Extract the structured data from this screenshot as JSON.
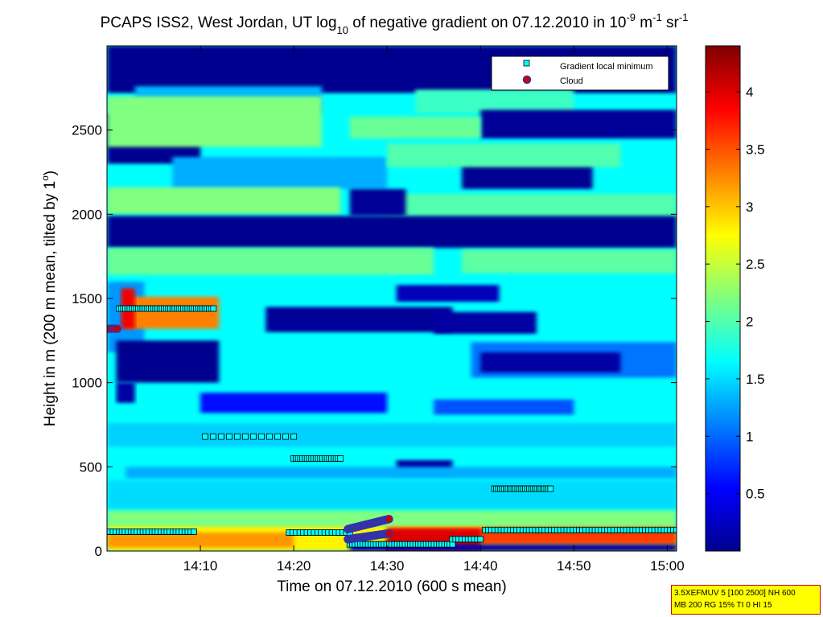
{
  "chart_data": {
    "type": "heatmap",
    "title": {
      "part1": "PCAPS ISS2, West Jordan, UT log",
      "sub10": "10",
      "part2": " of negative gradient on 07.12.2010 in 10",
      "sup_m9": "-9",
      "part3": " m",
      "sup_m1a": "-1",
      "part4": " sr",
      "sup_m1b": "-1"
    },
    "xlabel": "Time on 07.12.2010 (600 s mean)",
    "ylabel": {
      "part1": "Height in m (200 m mean, tilted by 1",
      "deg": "o",
      "part2": ")"
    },
    "x_range_min": [
      0,
      61
    ],
    "ylim": [
      0,
      3000
    ],
    "x_ticks": [
      {
        "min": 10,
        "label": "14:10"
      },
      {
        "min": 20,
        "label": "14:20"
      },
      {
        "min": 30,
        "label": "14:30"
      },
      {
        "min": 40,
        "label": "14:40"
      },
      {
        "min": 50,
        "label": "14:50"
      },
      {
        "min": 60,
        "label": "15:00"
      }
    ],
    "y_ticks": [
      {
        "value": 0,
        "label": "0"
      },
      {
        "value": 500,
        "label": "500"
      },
      {
        "value": 1000,
        "label": "1000"
      },
      {
        "value": 1500,
        "label": "1500"
      },
      {
        "value": 2000,
        "label": "2000"
      },
      {
        "value": 2500,
        "label": "2500"
      }
    ],
    "colorbar": {
      "range": [
        0,
        4.4
      ],
      "ticks": [
        {
          "value": 0.5,
          "label": "0.5"
        },
        {
          "value": 1,
          "label": "1"
        },
        {
          "value": 1.5,
          "label": "1.5"
        },
        {
          "value": 2,
          "label": "2"
        },
        {
          "value": 2.5,
          "label": "2.5"
        },
        {
          "value": 3,
          "label": "3"
        },
        {
          "value": 3.5,
          "label": "3.5"
        },
        {
          "value": 4,
          "label": "4"
        }
      ]
    },
    "legend": {
      "placement": "top-right",
      "entries": [
        {
          "label": "Gradient local minimum",
          "marker": "square",
          "color": "#00ffff"
        },
        {
          "label": "Cloud",
          "marker": "circle",
          "color": "#cc0000"
        }
      ]
    },
    "colors": {
      "background_field": "#33ccff",
      "low": "#00008f",
      "high": "#800000"
    },
    "regions": [
      {
        "t": [
          0,
          61
        ],
        "h": [
          0,
          3000
        ],
        "v": 1.65
      },
      {
        "t": [
          0,
          61
        ],
        "h": [
          2720,
          3000
        ],
        "v": 0.0
      },
      {
        "t": [
          3,
          23
        ],
        "h": [
          2600,
          2760
        ],
        "v": 1.35
      },
      {
        "t": [
          33,
          50
        ],
        "h": [
          2600,
          2740
        ],
        "v": 1.9
      },
      {
        "t": [
          40,
          61
        ],
        "h": [
          2450,
          2620
        ],
        "v": 0.05
      },
      {
        "t": [
          0,
          10
        ],
        "h": [
          2300,
          2600
        ],
        "v": 0.0
      },
      {
        "t": [
          0,
          23
        ],
        "h": [
          2400,
          2700
        ],
        "v": 2.2
      },
      {
        "t": [
          26,
          40
        ],
        "h": [
          2450,
          2580
        ],
        "v": 2.1
      },
      {
        "t": [
          7,
          30
        ],
        "h": [
          2150,
          2340
        ],
        "v": 1.3
      },
      {
        "t": [
          38,
          52
        ],
        "h": [
          2150,
          2300
        ],
        "v": 0.02
      },
      {
        "t": [
          30,
          55
        ],
        "h": [
          2280,
          2420
        ],
        "v": 2.0
      },
      {
        "t": [
          0,
          25
        ],
        "h": [
          2000,
          2160
        ],
        "v": 2.2
      },
      {
        "t": [
          30,
          61
        ],
        "h": [
          1980,
          2120
        ],
        "v": 2.0
      },
      {
        "t": [
          0,
          61
        ],
        "h": [
          1800,
          1990
        ],
        "v": 0.0
      },
      {
        "t": [
          26,
          32
        ],
        "h": [
          1990,
          2150
        ],
        "v": 0.05
      },
      {
        "t": [
          0,
          35
        ],
        "h": [
          1640,
          1800
        ],
        "v": 2.1
      },
      {
        "t": [
          38,
          61
        ],
        "h": [
          1650,
          1790
        ],
        "v": 2.05
      },
      {
        "t": [
          31,
          42
        ],
        "h": [
          1480,
          1580
        ],
        "v": 0.2
      },
      {
        "t": [
          17,
          37
        ],
        "h": [
          1300,
          1450
        ],
        "v": 0.05
      },
      {
        "t": [
          35,
          46
        ],
        "h": [
          1290,
          1420
        ],
        "v": 0.1
      },
      {
        "t": [
          0,
          4
        ],
        "h": [
          1180,
          1600
        ],
        "v": 1.2
      },
      {
        "t": [
          1,
          12
        ],
        "h": [
          1000,
          1250
        ],
        "v": 0.0
      },
      {
        "t": [
          1,
          3
        ],
        "h": [
          880,
          1000
        ],
        "v": 0.1
      },
      {
        "t": [
          39,
          61
        ],
        "h": [
          1030,
          1240
        ],
        "v": 1.05
      },
      {
        "t": [
          40,
          55
        ],
        "h": [
          1060,
          1180
        ],
        "v": 0.1
      },
      {
        "t": [
          10,
          30
        ],
        "h": [
          820,
          940
        ],
        "v": 0.6
      },
      {
        "t": [
          35,
          50
        ],
        "h": [
          810,
          900
        ],
        "v": 0.9
      },
      {
        "t": [
          0,
          61
        ],
        "h": [
          620,
          760
        ],
        "v": 1.45
      },
      {
        "t": [
          31,
          37
        ],
        "h": [
          450,
          540
        ],
        "v": 0.1
      },
      {
        "t": [
          2,
          61
        ],
        "h": [
          430,
          500
        ],
        "v": 1.3
      },
      {
        "t": [
          0,
          61
        ],
        "h": [
          250,
          420
        ],
        "v": 1.5
      },
      {
        "t": [
          2,
          12
        ],
        "h": [
          1320,
          1510
        ],
        "v": 3.3
      },
      {
        "t": [
          1.5,
          3
        ],
        "h": [
          1320,
          1560
        ],
        "v": 3.9
      },
      {
        "t": [
          0,
          61
        ],
        "h": [
          150,
          240
        ],
        "v": 2.2
      },
      {
        "t": [
          0,
          61
        ],
        "h": [
          0,
          150
        ],
        "v": 2.8
      },
      {
        "t": [
          0,
          20
        ],
        "h": [
          20,
          110
        ],
        "v": 3.2
      },
      {
        "t": [
          30,
          61
        ],
        "h": [
          40,
          140
        ],
        "v": 3.6
      },
      {
        "t": [
          30,
          40
        ],
        "h": [
          0,
          130
        ],
        "v": 4.0
      },
      {
        "t": [
          26,
          61
        ],
        "h": [
          0,
          40
        ],
        "v": 0.15
      }
    ],
    "gradient_minimum_markers": [
      {
        "t": [
          0,
          9.3
        ],
        "h": 115,
        "n": 30
      },
      {
        "t": [
          19.5,
          26
        ],
        "h": 110,
        "n": 18
      },
      {
        "t": [
          26,
          37
        ],
        "h": 40,
        "n": 40
      },
      {
        "t": [
          37,
          40
        ],
        "h": 70,
        "n": 10
      },
      {
        "t": [
          40.5,
          61
        ],
        "h": 125,
        "n": 62
      },
      {
        "t": [
          1.3,
          11.4
        ],
        "h": 1440,
        "n": 45
      },
      {
        "t": [
          10.5,
          20
        ],
        "h": 680,
        "n": 12
      },
      {
        "t": [
          20,
          25
        ],
        "h": 550,
        "n": 22
      },
      {
        "t": [
          41.5,
          47.5
        ],
        "h": 370,
        "n": 30
      }
    ],
    "cloud_markers": [
      {
        "t": [
          25.8,
          30.2
        ],
        "h": [
          130,
          190
        ],
        "n": 40
      },
      {
        "t": [
          25.8,
          30.2
        ],
        "h": [
          70,
          105
        ],
        "n": 40
      },
      {
        "t": [
          0.2,
          1.1
        ],
        "h": [
          1320,
          1320
        ],
        "n": 4
      }
    ],
    "info_box": {
      "line1": "3.5XEFMUV 5 [100 2500] NH 600",
      "line2": "MB 200 RG 15% TI 0 HI 15"
    }
  }
}
